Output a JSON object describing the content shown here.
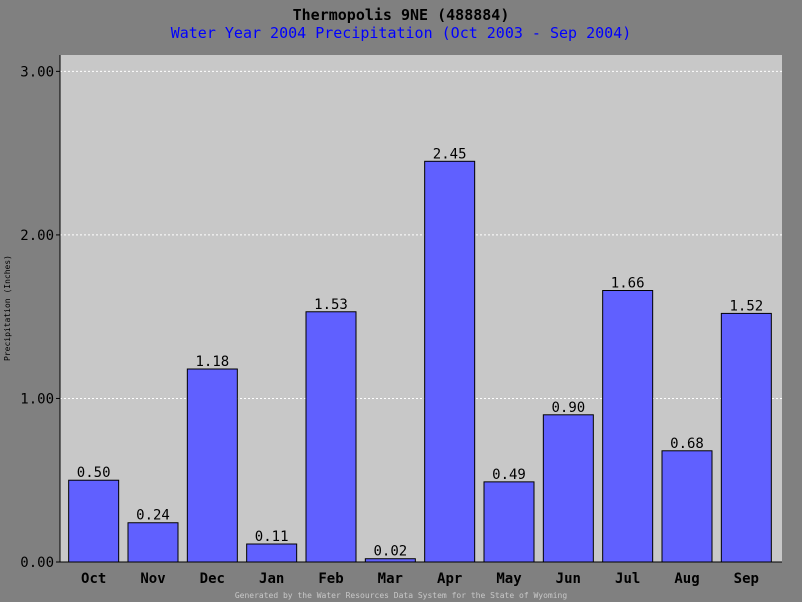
{
  "chart_data": {
    "type": "bar",
    "title": "Thermopolis 9NE (488884)",
    "subtitle": "Water Year 2004 Precipitation (Oct 2003 - Sep 2004)",
    "xlabel": "",
    "ylabel": "Precipitation (Inches)",
    "footer": "Generated by the Water Resources Data System for the State of Wyoming",
    "categories": [
      "Oct",
      "Nov",
      "Dec",
      "Jan",
      "Feb",
      "Mar",
      "Apr",
      "May",
      "Jun",
      "Jul",
      "Aug",
      "Sep"
    ],
    "values": [
      0.5,
      0.24,
      1.18,
      0.11,
      1.53,
      0.02,
      2.45,
      0.49,
      0.9,
      1.66,
      0.68,
      1.52
    ],
    "value_labels": [
      "0.50",
      "0.24",
      "1.18",
      "0.11",
      "1.53",
      "0.02",
      "2.45",
      "0.49",
      "0.90",
      "1.66",
      "0.68",
      "1.52"
    ],
    "ylim": [
      0,
      3.1
    ],
    "yticks": [
      0,
      1,
      2,
      3
    ],
    "ytick_labels": [
      "0.00",
      "1.00",
      "2.00",
      "3.00"
    ],
    "grid": true,
    "colors": {
      "background": "#808080",
      "plot_area": "#c8c8c8",
      "bar": "#6060ff",
      "title": "#000000",
      "subtitle": "#0000ff",
      "grid": "#ffffff",
      "footer": "#c8c8c8"
    }
  }
}
